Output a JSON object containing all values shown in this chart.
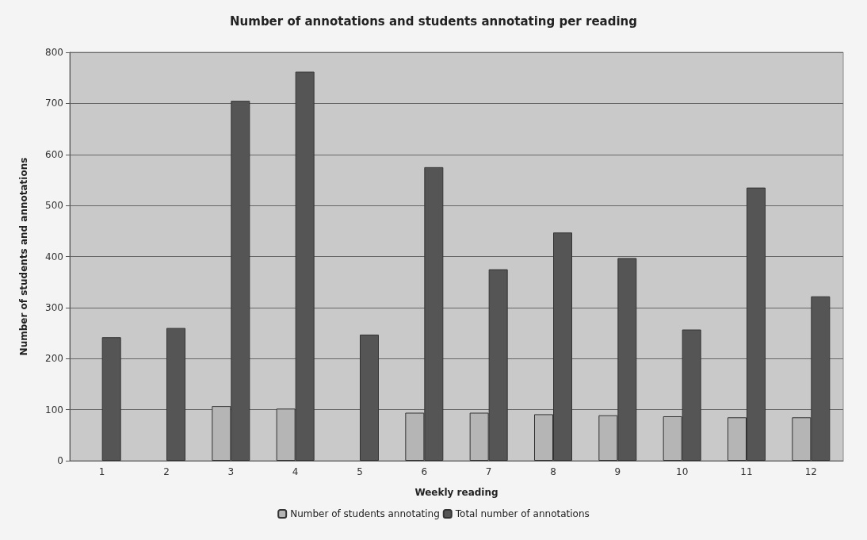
{
  "chart_data": {
    "type": "bar",
    "title": "Number of annotations and students annotating per reading",
    "xlabel": "Weekly reading",
    "ylabel": "Number of students and annotations",
    "categories": [
      "1",
      "2",
      "3",
      "4",
      "5",
      "6",
      "7",
      "8",
      "9",
      "10",
      "11",
      "12"
    ],
    "series": [
      {
        "name": "Number of students annotating",
        "color": "#b5b5b5",
        "values": [
          null,
          null,
          107,
          102,
          null,
          94,
          94,
          91,
          89,
          87,
          85,
          85
        ]
      },
      {
        "name": "Total number of annotations",
        "color": "#555555",
        "values": [
          242,
          260,
          705,
          762,
          247,
          575,
          375,
          447,
          397,
          257,
          535,
          322
        ]
      }
    ],
    "ylim": [
      0,
      800
    ],
    "yticks": [
      0,
      100,
      200,
      300,
      400,
      500,
      600,
      700,
      800
    ],
    "grid": "y",
    "legend": "bottom"
  }
}
